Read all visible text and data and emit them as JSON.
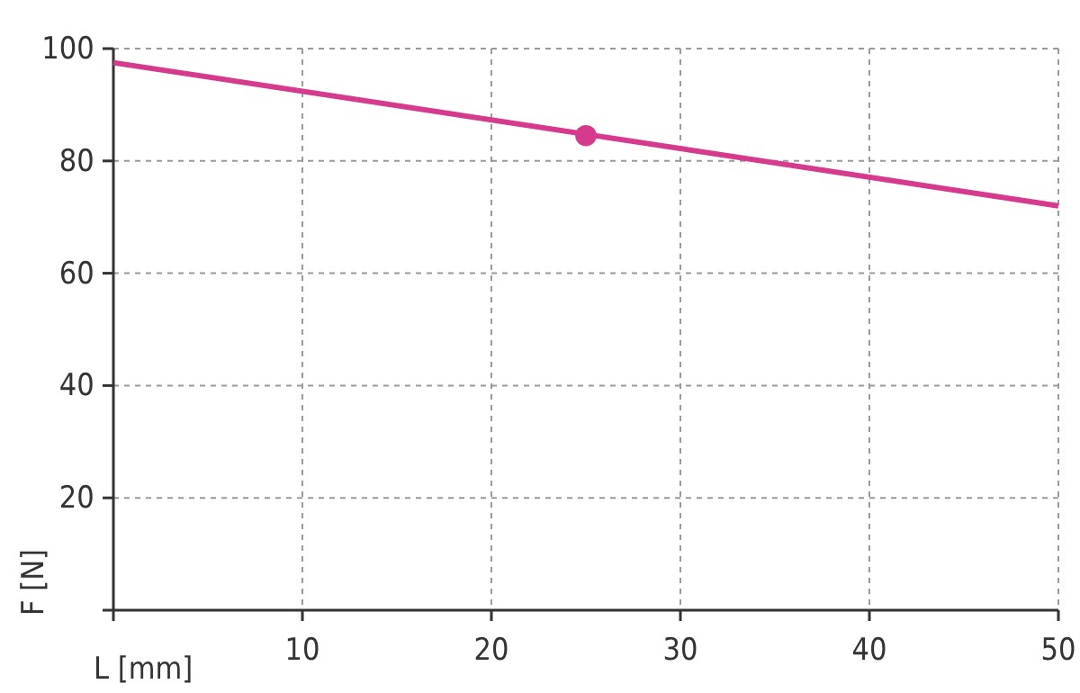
{
  "chart_data": {
    "type": "line",
    "xlabel": "L [mm]",
    "ylabel": "F [N]",
    "xlim": [
      0,
      50
    ],
    "ylim": [
      0,
      100
    ],
    "xticks": [
      {
        "value": 0,
        "label": null
      },
      10,
      20,
      30,
      40,
      50
    ],
    "yticks": [
      {
        "value": 0,
        "label": null
      },
      20,
      40,
      60,
      80,
      100
    ],
    "grid": true,
    "series": [
      {
        "color": "#d63a8c",
        "x": [
          0,
          50
        ],
        "values": [
          97.5,
          72
        ],
        "marker": "none"
      },
      {
        "type": "scatter",
        "color": "#d63a8c",
        "x": [
          25
        ],
        "values": [
          84.5
        ],
        "marker": "circle"
      }
    ]
  }
}
